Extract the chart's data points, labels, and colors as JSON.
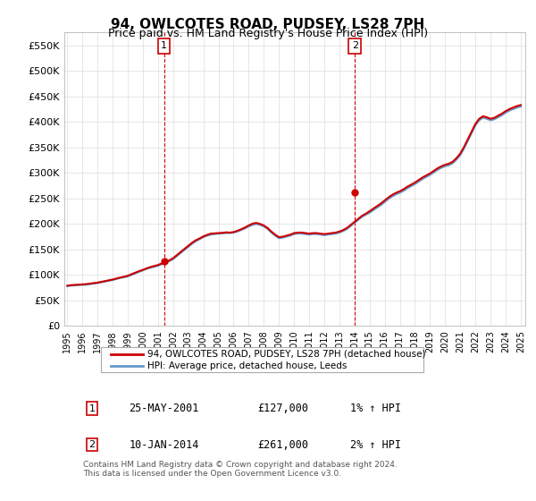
{
  "title": "94, OWLCOTES ROAD, PUDSEY, LS28 7PH",
  "subtitle": "Price paid vs. HM Land Registry's House Price Index (HPI)",
  "ylabel": "",
  "xlabel": "",
  "ylim": [
    0,
    575000
  ],
  "yticks": [
    0,
    50000,
    100000,
    150000,
    200000,
    250000,
    300000,
    350000,
    400000,
    450000,
    500000,
    550000
  ],
  "ytick_labels": [
    "£0",
    "£50K",
    "£100K",
    "£150K",
    "£200K",
    "£250K",
    "£300K",
    "£350K",
    "£400K",
    "£450K",
    "£500K",
    "£550K"
  ],
  "xtick_years": [
    1995,
    1996,
    1997,
    1998,
    1999,
    2000,
    2001,
    2002,
    2003,
    2004,
    2005,
    2006,
    2007,
    2008,
    2009,
    2010,
    2011,
    2012,
    2013,
    2014,
    2015,
    2016,
    2017,
    2018,
    2019,
    2020,
    2021,
    2022,
    2023,
    2024,
    2025
  ],
  "red_line_color": "#cc0000",
  "blue_line_color": "#6699cc",
  "point1_x": 2001.4,
  "point1_y": 127000,
  "point2_x": 2014.03,
  "point2_y": 261000,
  "annotation1_label": "1",
  "annotation1_date": "25-MAY-2001",
  "annotation1_price": "£127,000",
  "annotation1_hpi": "1% ↑ HPI",
  "annotation2_label": "2",
  "annotation2_date": "10-JAN-2014",
  "annotation2_price": "£261,000",
  "annotation2_hpi": "2% ↑ HPI",
  "legend_line1": "94, OWLCOTES ROAD, PUDSEY, LS28 7PH (detached house)",
  "legend_line2": "HPI: Average price, detached house, Leeds",
  "footer": "Contains HM Land Registry data © Crown copyright and database right 2024.\nThis data is licensed under the Open Government Licence v3.0.",
  "background_color": "#ffffff",
  "plot_bg_color": "#ffffff",
  "grid_color": "#dddddd",
  "hpi_data_x": [
    1995.0,
    1995.25,
    1995.5,
    1995.75,
    1996.0,
    1996.25,
    1996.5,
    1996.75,
    1997.0,
    1997.25,
    1997.5,
    1997.75,
    1998.0,
    1998.25,
    1998.5,
    1998.75,
    1999.0,
    1999.25,
    1999.5,
    1999.75,
    2000.0,
    2000.25,
    2000.5,
    2000.75,
    2001.0,
    2001.25,
    2001.5,
    2001.75,
    2002.0,
    2002.25,
    2002.5,
    2002.75,
    2003.0,
    2003.25,
    2003.5,
    2003.75,
    2004.0,
    2004.25,
    2004.5,
    2004.75,
    2005.0,
    2005.25,
    2005.5,
    2005.75,
    2006.0,
    2006.25,
    2006.5,
    2006.75,
    2007.0,
    2007.25,
    2007.5,
    2007.75,
    2008.0,
    2008.25,
    2008.5,
    2008.75,
    2009.0,
    2009.25,
    2009.5,
    2009.75,
    2010.0,
    2010.25,
    2010.5,
    2010.75,
    2011.0,
    2011.25,
    2011.5,
    2011.75,
    2012.0,
    2012.25,
    2012.5,
    2012.75,
    2013.0,
    2013.25,
    2013.5,
    2013.75,
    2014.0,
    2014.25,
    2014.5,
    2014.75,
    2015.0,
    2015.25,
    2015.5,
    2015.75,
    2016.0,
    2016.25,
    2016.5,
    2016.75,
    2017.0,
    2017.25,
    2017.5,
    2017.75,
    2018.0,
    2018.25,
    2018.5,
    2018.75,
    2019.0,
    2019.25,
    2019.5,
    2019.75,
    2020.0,
    2020.25,
    2020.5,
    2020.75,
    2021.0,
    2021.25,
    2021.5,
    2021.75,
    2022.0,
    2022.25,
    2022.5,
    2022.75,
    2023.0,
    2023.25,
    2023.5,
    2023.75,
    2024.0,
    2024.25,
    2024.5,
    2024.75,
    2025.0
  ],
  "hpi_data_y": [
    78000,
    79000,
    79500,
    80000,
    80500,
    81000,
    82000,
    83000,
    84000,
    85500,
    87000,
    88500,
    90000,
    92000,
    94000,
    95500,
    97000,
    100000,
    103000,
    106000,
    109000,
    112000,
    114000,
    116000,
    118000,
    121000,
    124000,
    127000,
    131000,
    137000,
    143000,
    149000,
    155000,
    161000,
    166000,
    170000,
    174000,
    177000,
    179000,
    180000,
    181000,
    181500,
    182000,
    182000,
    183000,
    185000,
    188000,
    191000,
    195000,
    198000,
    200000,
    198000,
    195000,
    190000,
    183000,
    177000,
    172000,
    173000,
    175000,
    177000,
    180000,
    181000,
    181000,
    180000,
    179000,
    180000,
    180000,
    179000,
    178000,
    179000,
    180000,
    181000,
    183000,
    186000,
    190000,
    196000,
    202000,
    208000,
    214000,
    218000,
    222000,
    227000,
    232000,
    237000,
    243000,
    249000,
    254000,
    258000,
    261000,
    265000,
    270000,
    274000,
    278000,
    283000,
    288000,
    292000,
    296000,
    301000,
    306000,
    310000,
    313000,
    315000,
    319000,
    326000,
    335000,
    348000,
    363000,
    378000,
    393000,
    403000,
    408000,
    406000,
    403000,
    405000,
    409000,
    413000,
    418000,
    422000,
    425000,
    428000,
    430000
  ],
  "property_data_x": [
    1995.0,
    1995.25,
    1995.5,
    1995.75,
    1996.0,
    1996.25,
    1996.5,
    1996.75,
    1997.0,
    1997.25,
    1997.5,
    1997.75,
    1998.0,
    1998.25,
    1998.5,
    1998.75,
    1999.0,
    1999.25,
    1999.5,
    1999.75,
    2000.0,
    2000.25,
    2000.5,
    2000.75,
    2001.0,
    2001.25,
    2001.5,
    2001.75,
    2002.0,
    2002.25,
    2002.5,
    2002.75,
    2003.0,
    2003.25,
    2003.5,
    2003.75,
    2004.0,
    2004.25,
    2004.5,
    2004.75,
    2005.0,
    2005.25,
    2005.5,
    2005.75,
    2006.0,
    2006.25,
    2006.5,
    2006.75,
    2007.0,
    2007.25,
    2007.5,
    2007.75,
    2008.0,
    2008.25,
    2008.5,
    2008.75,
    2009.0,
    2009.25,
    2009.5,
    2009.75,
    2010.0,
    2010.25,
    2010.5,
    2010.75,
    2011.0,
    2011.25,
    2011.5,
    2011.75,
    2012.0,
    2012.25,
    2012.5,
    2012.75,
    2013.0,
    2013.25,
    2013.5,
    2013.75,
    2014.0,
    2014.25,
    2014.5,
    2014.75,
    2015.0,
    2015.25,
    2015.5,
    2015.75,
    2016.0,
    2016.25,
    2016.5,
    2016.75,
    2017.0,
    2017.25,
    2017.5,
    2017.75,
    2018.0,
    2018.25,
    2018.5,
    2018.75,
    2019.0,
    2019.25,
    2019.5,
    2019.75,
    2020.0,
    2020.25,
    2020.5,
    2020.75,
    2021.0,
    2021.25,
    2021.5,
    2021.75,
    2022.0,
    2022.25,
    2022.5,
    2022.75,
    2023.0,
    2023.25,
    2023.5,
    2023.75,
    2024.0,
    2024.25,
    2024.5,
    2024.75,
    2025.0
  ],
  "property_data_y": [
    79000,
    80000,
    80500,
    81000,
    81500,
    82000,
    83000,
    84000,
    85000,
    86500,
    88000,
    89500,
    91000,
    93000,
    95000,
    96500,
    98500,
    101500,
    104500,
    107500,
    110000,
    113000,
    115500,
    117500,
    119500,
    122500,
    126000,
    128500,
    133000,
    139000,
    145000,
    151000,
    157000,
    163000,
    168000,
    171500,
    175500,
    178500,
    181000,
    181500,
    182000,
    182500,
    183500,
    183000,
    184000,
    186500,
    189500,
    193000,
    197000,
    200500,
    202000,
    200000,
    197000,
    192000,
    185000,
    179000,
    174000,
    175000,
    177000,
    179000,
    182000,
    183000,
    183000,
    182000,
    181000,
    182000,
    182000,
    181000,
    180000,
    181000,
    182000,
    183000,
    185000,
    188000,
    192000,
    198000,
    204000,
    210000,
    216000,
    220000,
    225000,
    230000,
    235000,
    240000,
    246000,
    252000,
    257000,
    261000,
    264000,
    268000,
    273000,
    277000,
    281000,
    286000,
    291000,
    295000,
    299000,
    304000,
    309000,
    313000,
    316000,
    318000,
    322000,
    329000,
    338000,
    351000,
    366000,
    381000,
    396000,
    406000,
    411000,
    409000,
    406000,
    408000,
    412000,
    416000,
    421000,
    425000,
    428000,
    431000,
    433000
  ]
}
